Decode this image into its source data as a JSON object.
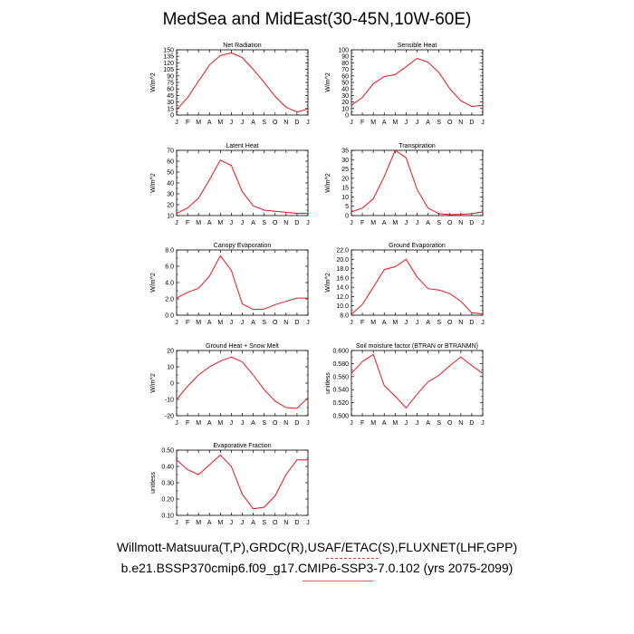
{
  "page": {
    "title": "MedSea and MidEast(30-45N,10W-60E)",
    "footer_line1": "Willmott-Matsuura(T,P),GRDC(R),USAF/ETAC(S),FLUXNET(LHF,GPP)",
    "footer_line2": "b.e21.BSSP370cmip6.f09_g17.CMIP6-SSP3-7.0.102 (yrs 2075-2099)",
    "line_color": "#e8141c"
  },
  "chart_data": [
    {
      "type": "line",
      "title": "Net Radiation",
      "ylabel": "W/m^2",
      "categories": [
        "J",
        "F",
        "M",
        "A",
        "M",
        "J",
        "J",
        "A",
        "S",
        "O",
        "N",
        "D",
        "J"
      ],
      "ylim": [
        0,
        150
      ],
      "yticks": [
        "0",
        "15",
        "30",
        "45",
        "60",
        "75",
        "90",
        "105",
        "120",
        "135",
        "150"
      ],
      "values": [
        12,
        40,
        78,
        115,
        137,
        143,
        132,
        105,
        75,
        43,
        18,
        7,
        14
      ]
    },
    {
      "type": "line",
      "title": "Sensible Heat",
      "ylabel": "W/m^2",
      "categories": [
        "J",
        "F",
        "M",
        "A",
        "M",
        "J",
        "J",
        "A",
        "S",
        "O",
        "N",
        "D",
        "J"
      ],
      "ylim": [
        0,
        100
      ],
      "yticks": [
        "0",
        "10",
        "20",
        "30",
        "40",
        "50",
        "60",
        "70",
        "80",
        "90",
        "100"
      ],
      "values": [
        15,
        27,
        48,
        59,
        62,
        74,
        87,
        81,
        65,
        40,
        22,
        13,
        15
      ]
    },
    {
      "type": "line",
      "title": "Latent Heat",
      "ylabel": "W/m^2",
      "categories": [
        "J",
        "F",
        "M",
        "A",
        "M",
        "J",
        "J",
        "A",
        "S",
        "O",
        "N",
        "D",
        "J"
      ],
      "ylim": [
        10,
        70
      ],
      "yticks": [
        "10",
        "20",
        "30",
        "40",
        "50",
        "60",
        "70"
      ],
      "values": [
        12,
        17,
        26,
        43,
        61,
        56,
        32,
        19,
        15,
        14,
        13,
        12,
        12
      ]
    },
    {
      "type": "line",
      "title": "Transpiration",
      "ylabel": "W/m^2",
      "categories": [
        "J",
        "F",
        "M",
        "A",
        "M",
        "J",
        "J",
        "A",
        "S",
        "O",
        "N",
        "D",
        "J"
      ],
      "ylim": [
        0,
        35
      ],
      "yticks": [
        "0",
        "5",
        "10",
        "15",
        "20",
        "25",
        "30",
        "35"
      ],
      "values": [
        2,
        4,
        9,
        21,
        35,
        31,
        14,
        4,
        1,
        0.5,
        0.7,
        1,
        2
      ]
    },
    {
      "type": "line",
      "title": "Canopy Evaporation",
      "ylabel": "W/m^2",
      "categories": [
        "J",
        "F",
        "M",
        "A",
        "M",
        "J",
        "J",
        "A",
        "S",
        "O",
        "N",
        "D",
        "J"
      ],
      "ylim": [
        0,
        8
      ],
      "yticks": [
        "0.0",
        "2.0",
        "4.0",
        "6.0",
        "8.0"
      ],
      "values": [
        2.1,
        2.8,
        3.3,
        4.8,
        7.3,
        5.5,
        1.4,
        0.7,
        0.75,
        1.3,
        1.7,
        2.1,
        2.1
      ]
    },
    {
      "type": "line",
      "title": "Ground Evaporation",
      "ylabel": "W/m^2",
      "categories": [
        "J",
        "F",
        "M",
        "A",
        "M",
        "J",
        "J",
        "A",
        "S",
        "O",
        "N",
        "D",
        "J"
      ],
      "ylim": [
        8,
        22
      ],
      "yticks": [
        "8.0",
        "10.0",
        "12.0",
        "14.0",
        "16.0",
        "18.0",
        "20.0",
        "22.0"
      ],
      "values": [
        8.2,
        10.3,
        14.0,
        17.8,
        18.4,
        20.0,
        16.2,
        13.7,
        13.4,
        12.6,
        11.0,
        8.5,
        8.3
      ]
    },
    {
      "type": "line",
      "title": "Ground Heat + Snow Melt",
      "ylabel": "W/m^2",
      "categories": [
        "J",
        "F",
        "M",
        "A",
        "M",
        "J",
        "J",
        "A",
        "S",
        "O",
        "N",
        "D",
        "J"
      ],
      "ylim": [
        -20,
        20
      ],
      "yticks": [
        "-20",
        "-10",
        "0",
        "10",
        "20"
      ],
      "values": [
        -10,
        -2,
        5,
        10,
        13.5,
        16,
        13,
        5,
        -4,
        -11,
        -15,
        -15.5,
        -9
      ]
    },
    {
      "type": "line",
      "title": "Soil moisture factor (BTRAN or BTRANMN)",
      "ylabel": "unitless",
      "categories": [
        "J",
        "F",
        "M",
        "A",
        "M",
        "J",
        "J",
        "A",
        "S",
        "O",
        "N",
        "D",
        "J"
      ],
      "ylim": [
        0.5,
        0.6
      ],
      "yticks": [
        "0.500",
        "0.520",
        "0.540",
        "0.560",
        "0.580",
        "0.600"
      ],
      "values": [
        0.565,
        0.583,
        0.594,
        0.546,
        0.53,
        0.512,
        0.533,
        0.552,
        0.562,
        0.577,
        0.59,
        0.577,
        0.565
      ]
    },
    {
      "type": "line",
      "title": "Evaporative Fraction",
      "ylabel": "unitless",
      "categories": [
        "J",
        "F",
        "M",
        "A",
        "M",
        "J",
        "J",
        "A",
        "S",
        "O",
        "N",
        "D",
        "J"
      ],
      "ylim": [
        0.1,
        0.5
      ],
      "yticks": [
        "0.10",
        "0.20",
        "0.30",
        "0.40",
        "0.50"
      ],
      "values": [
        0.44,
        0.38,
        0.35,
        0.41,
        0.47,
        0.4,
        0.23,
        0.14,
        0.15,
        0.22,
        0.35,
        0.44,
        0.44
      ]
    }
  ]
}
